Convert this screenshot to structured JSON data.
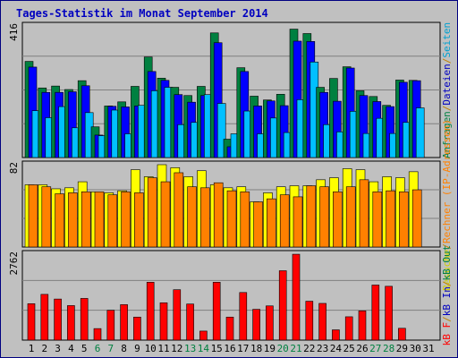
{
  "title": "Tages-Statistik im Monat September 2014",
  "right_label": {
    "top_parts": [
      {
        "text": "Anfragen",
        "color": "#008040"
      },
      {
        "text": "/",
        "color": "#c08000"
      },
      {
        "text": "Dateien",
        "color": "#0000c0"
      },
      {
        "text": "/",
        "color": "#c08000"
      },
      {
        "text": "Seiten",
        "color": "#00a0d0"
      }
    ],
    "middle_parts": [
      {
        "text": "Besuche",
        "color": "#d0d000"
      },
      {
        "text": "/",
        "color": "#c08000"
      },
      {
        "text": "Rechner (IP-Adressen)",
        "color": "#ff8000"
      }
    ],
    "bottom_parts": [
      {
        "text": "kB F",
        "color": "#ff0000"
      },
      {
        "text": "/",
        "color": "#c08000"
      },
      {
        "text": "kB In",
        "color": "#0000c0"
      },
      {
        "text": "/",
        "color": "#c08000"
      },
      {
        "text": "kB Out",
        "color": "#008040"
      }
    ]
  },
  "colors": {
    "background": "#c0c0c0",
    "frame": "#000080",
    "title": "#0000c0",
    "weekday": "#000000",
    "weekend": "#008040",
    "hits": "#008040",
    "files": "#0000ff",
    "pages": "#00c0ff",
    "visits": "#ffff00",
    "sites": "#ff8000",
    "kbytes": "#ff0000"
  },
  "chart_data": [
    {
      "type": "bar",
      "panel": "hits-files-pages",
      "max_label": "416",
      "ylim": [
        0,
        416
      ],
      "categories": [
        "1",
        "2",
        "3",
        "4",
        "5",
        "6",
        "7",
        "8",
        "9",
        "10",
        "11",
        "12",
        "13",
        "14",
        "15",
        "16",
        "17",
        "18",
        "19",
        "20",
        "21",
        "22",
        "23",
        "24",
        "25",
        "26",
        "27",
        "28",
        "29",
        "30",
        "31"
      ],
      "weekend_days": [
        "6",
        "7",
        "13",
        "14",
        "20",
        "21",
        "27",
        "28"
      ],
      "series": [
        {
          "key": "hits",
          "values": [
            304,
            220,
            226,
            215,
            243,
            97,
            163,
            176,
            225,
            318,
            251,
            222,
            196,
            225,
            394,
            58,
            284,
            194,
            182,
            200,
            406,
            392,
            222,
            250,
            287,
            211,
            193,
            165,
            245,
            244,
            0
          ]
        },
        {
          "key": "files",
          "values": [
            286,
            206,
            206,
            208,
            227,
            71,
            162,
            160,
            163,
            272,
            244,
            199,
            175,
            196,
            363,
            34,
            272,
            163,
            179,
            164,
            368,
            367,
            206,
            178,
            283,
            196,
            177,
            161,
            238,
            243,
            0
          ]
        },
        {
          "key": "pages",
          "values": [
            148,
            126,
            161,
            94,
            142,
            69,
            150,
            75,
            165,
            211,
            222,
            104,
            111,
            199,
            171,
            75,
            147,
            75,
            125,
            79,
            183,
            302,
            104,
            81,
            146,
            76,
            124,
            76,
            111,
            157,
            0
          ]
        }
      ]
    },
    {
      "type": "bar",
      "panel": "visits-sites",
      "max_label": "82",
      "ylim": [
        0,
        82
      ],
      "categories": [
        "1",
        "2",
        "3",
        "4",
        "5",
        "6",
        "7",
        "8",
        "9",
        "10",
        "11",
        "12",
        "13",
        "14",
        "15",
        "16",
        "17",
        "18",
        "19",
        "20",
        "21",
        "22",
        "23",
        "24",
        "25",
        "26",
        "27",
        "28",
        "29",
        "30",
        "31"
      ],
      "weekend_days": [
        "6",
        "7",
        "13",
        "14",
        "20",
        "21",
        "27",
        "28"
      ],
      "series": [
        {
          "key": "visits",
          "values": [
            62,
            62,
            58,
            59,
            65,
            55,
            54,
            56,
            77,
            70,
            82,
            79,
            70,
            76,
            62,
            59,
            60,
            45,
            54,
            60,
            61,
            61,
            67,
            69,
            78,
            77,
            65,
            70,
            69,
            75,
            0
          ]
        },
        {
          "key": "sites",
          "values": [
            62,
            60,
            53,
            54,
            55,
            55,
            52,
            55,
            54,
            69,
            65,
            74,
            60,
            59,
            64,
            56,
            55,
            45,
            48,
            52,
            50,
            61,
            60,
            55,
            60,
            67,
            55,
            56,
            55,
            57,
            0
          ]
        }
      ]
    },
    {
      "type": "bar",
      "panel": "kbytes",
      "max_label": "2762",
      "ylim": [
        0,
        2762
      ],
      "categories": [
        "1",
        "2",
        "3",
        "4",
        "5",
        "6",
        "7",
        "8",
        "9",
        "10",
        "11",
        "12",
        "13",
        "14",
        "15",
        "16",
        "17",
        "18",
        "19",
        "20",
        "21",
        "22",
        "23",
        "24",
        "25",
        "26",
        "27",
        "28",
        "29",
        "30",
        "31"
      ],
      "weekend_days": [
        "6",
        "7",
        "13",
        "14",
        "20",
        "21",
        "27",
        "28"
      ],
      "series": [
        {
          "key": "kbytes",
          "values": [
            1170,
            1470,
            1320,
            1110,
            1340,
            370,
            960,
            1140,
            740,
            1860,
            1200,
            1620,
            1160,
            290,
            1860,
            740,
            1530,
            990,
            1100,
            2230,
            2760,
            1250,
            1180,
            330,
            750,
            940,
            1770,
            1730,
            380,
            0,
            0
          ]
        }
      ]
    }
  ]
}
